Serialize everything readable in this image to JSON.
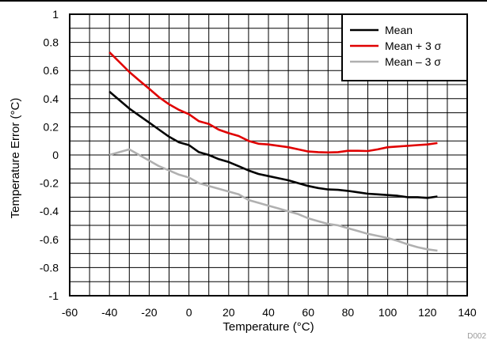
{
  "chart_data": {
    "type": "line",
    "xlabel": "Temperature (°C)",
    "ylabel": "Temperature Error (°C)",
    "xlim": [
      -60,
      140
    ],
    "ylim": [
      -1,
      1
    ],
    "x_ticks": [
      -60,
      -40,
      -20,
      0,
      20,
      40,
      60,
      80,
      100,
      120,
      140
    ],
    "y_ticks": [
      1,
      0.8,
      0.6,
      0.4,
      0.2,
      0,
      -0.2,
      -0.4,
      -0.6,
      -0.8,
      -1
    ],
    "x_tick_labels": [
      "-60",
      "-40",
      "-20",
      "0",
      "20",
      "40",
      "60",
      "80",
      "100",
      "120",
      "140"
    ],
    "y_tick_labels": [
      "1",
      "0.8",
      "0.6",
      "0.4",
      "0.2",
      "0",
      "-0.2",
      "-0.4",
      "-0.6",
      "-0.8",
      "-1"
    ],
    "grid": true,
    "minor_grid_x_step": 10,
    "minor_grid_y_step": 0.1,
    "legend_position": "top-right",
    "series": [
      {
        "name": "Mean",
        "color": "#000000",
        "x": [
          -40,
          -35,
          -30,
          -25,
          -20,
          -15,
          -10,
          -5,
          0,
          5,
          10,
          15,
          20,
          25,
          30,
          35,
          40,
          45,
          50,
          55,
          60,
          65,
          70,
          75,
          80,
          85,
          90,
          95,
          100,
          105,
          110,
          115,
          120,
          125
        ],
        "y": [
          0.45,
          0.39,
          0.33,
          0.28,
          0.23,
          0.18,
          0.13,
          0.09,
          0.07,
          0.02,
          0.0,
          -0.03,
          -0.05,
          -0.08,
          -0.11,
          -0.135,
          -0.15,
          -0.165,
          -0.18,
          -0.2,
          -0.22,
          -0.235,
          -0.245,
          -0.248,
          -0.255,
          -0.265,
          -0.275,
          -0.28,
          -0.285,
          -0.29,
          -0.3,
          -0.3,
          -0.305,
          -0.295
        ]
      },
      {
        "name": "Mean + 3 σ",
        "color": "#e00000",
        "x": [
          -40,
          -35,
          -30,
          -25,
          -20,
          -15,
          -10,
          -5,
          0,
          5,
          10,
          15,
          20,
          25,
          30,
          35,
          40,
          45,
          50,
          55,
          60,
          65,
          70,
          75,
          80,
          85,
          90,
          95,
          100,
          105,
          110,
          115,
          120,
          125
        ],
        "y": [
          0.73,
          0.66,
          0.59,
          0.53,
          0.47,
          0.41,
          0.36,
          0.32,
          0.29,
          0.24,
          0.22,
          0.18,
          0.155,
          0.135,
          0.1,
          0.08,
          0.075,
          0.065,
          0.055,
          0.04,
          0.025,
          0.02,
          0.018,
          0.02,
          0.03,
          0.03,
          0.028,
          0.04,
          0.055,
          0.06,
          0.065,
          0.07,
          0.075,
          0.085
        ]
      },
      {
        "name": "Mean – 3 σ",
        "color": "#b0b0b0",
        "x": [
          -40,
          -35,
          -30,
          -25,
          -20,
          -15,
          -10,
          -5,
          0,
          5,
          10,
          15,
          20,
          25,
          30,
          35,
          40,
          45,
          50,
          55,
          60,
          65,
          70,
          75,
          80,
          85,
          90,
          95,
          100,
          105,
          110,
          115,
          120,
          125
        ],
        "y": [
          0.0,
          0.02,
          0.04,
          0.0,
          -0.04,
          -0.08,
          -0.11,
          -0.14,
          -0.16,
          -0.2,
          -0.22,
          -0.24,
          -0.26,
          -0.28,
          -0.32,
          -0.34,
          -0.36,
          -0.38,
          -0.4,
          -0.42,
          -0.45,
          -0.47,
          -0.49,
          -0.5,
          -0.52,
          -0.54,
          -0.56,
          -0.575,
          -0.59,
          -0.61,
          -0.635,
          -0.655,
          -0.67,
          -0.68
        ]
      }
    ],
    "watermark": "D002"
  }
}
